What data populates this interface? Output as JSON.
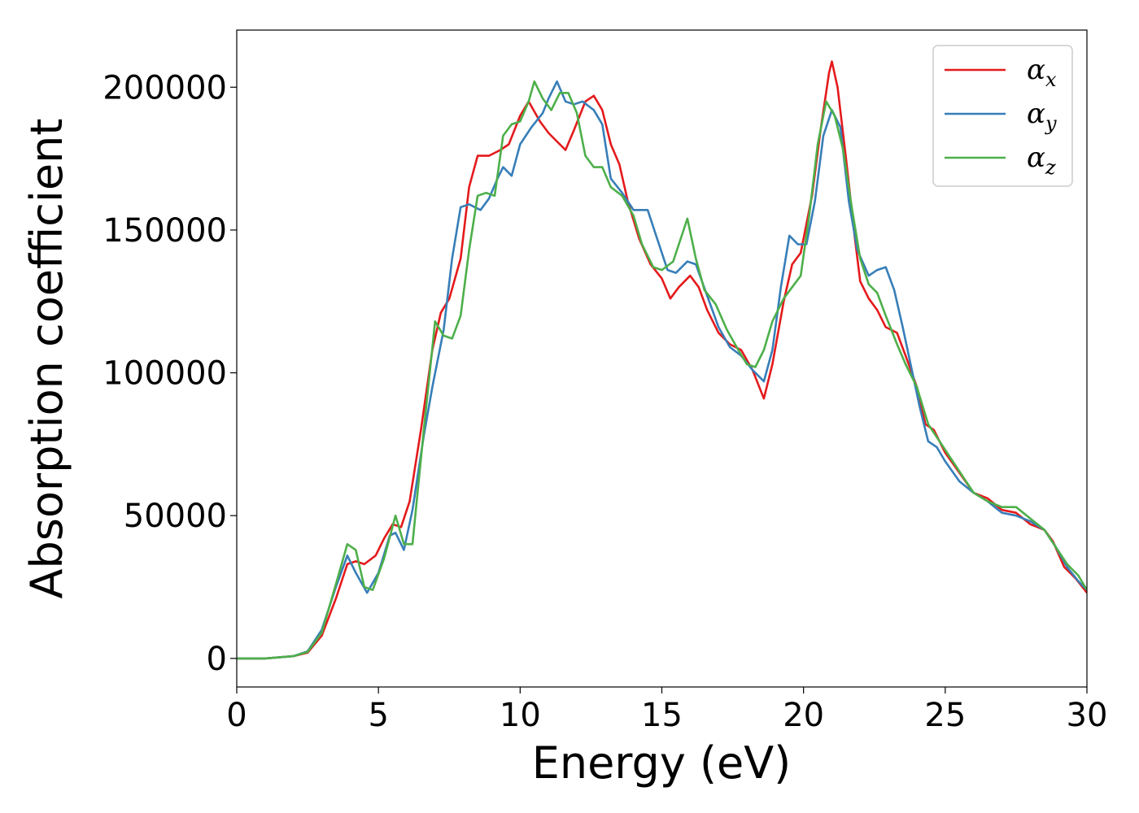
{
  "chart_data": {
    "type": "line",
    "title": "",
    "xlabel": "Energy (eV)",
    "ylabel": "Absorption coefficient",
    "xlim": [
      0,
      30
    ],
    "ylim": [
      -10000,
      220000
    ],
    "xticks": [
      0,
      5,
      10,
      15,
      20,
      25,
      30
    ],
    "yticks": [
      0,
      50000,
      100000,
      150000,
      200000
    ],
    "grid": false,
    "legend_position": "top-right",
    "series": [
      {
        "name": "α_x",
        "label_main": "α",
        "label_sub": "x",
        "color": "#e41a1c",
        "points": [
          [
            0,
            0
          ],
          [
            1,
            0
          ],
          [
            2,
            800
          ],
          [
            2.5,
            2000
          ],
          [
            3,
            8000
          ],
          [
            3.5,
            21000
          ],
          [
            3.9,
            33000
          ],
          [
            4.2,
            34000
          ],
          [
            4.5,
            33000
          ],
          [
            4.9,
            36000
          ],
          [
            5.2,
            42000
          ],
          [
            5.5,
            47000
          ],
          [
            5.8,
            46000
          ],
          [
            6.1,
            55000
          ],
          [
            6.5,
            80000
          ],
          [
            6.9,
            108000
          ],
          [
            7.2,
            121000
          ],
          [
            7.5,
            126000
          ],
          [
            7.9,
            140000
          ],
          [
            8.2,
            165000
          ],
          [
            8.5,
            176000
          ],
          [
            8.9,
            176000
          ],
          [
            9.3,
            178000
          ],
          [
            9.6,
            180000
          ],
          [
            10.0,
            190000
          ],
          [
            10.3,
            195000
          ],
          [
            10.7,
            188000
          ],
          [
            11.0,
            184000
          ],
          [
            11.3,
            181000
          ],
          [
            11.6,
            178000
          ],
          [
            11.9,
            185000
          ],
          [
            12.3,
            195000
          ],
          [
            12.6,
            197000
          ],
          [
            12.9,
            192000
          ],
          [
            13.2,
            180000
          ],
          [
            13.5,
            173000
          ],
          [
            13.8,
            160000
          ],
          [
            14.2,
            147000
          ],
          [
            14.6,
            138000
          ],
          [
            15.0,
            133000
          ],
          [
            15.3,
            126000
          ],
          [
            15.6,
            130000
          ],
          [
            16.0,
            134000
          ],
          [
            16.3,
            130000
          ],
          [
            16.6,
            122000
          ],
          [
            17.0,
            114000
          ],
          [
            17.4,
            110000
          ],
          [
            17.8,
            108000
          ],
          [
            18.2,
            101000
          ],
          [
            18.6,
            91000
          ],
          [
            18.9,
            103000
          ],
          [
            19.3,
            125000
          ],
          [
            19.6,
            138000
          ],
          [
            19.9,
            142000
          ],
          [
            20.3,
            162000
          ],
          [
            20.6,
            185000
          ],
          [
            20.9,
            205000
          ],
          [
            21.0,
            209000
          ],
          [
            21.2,
            200000
          ],
          [
            21.5,
            175000
          ],
          [
            21.8,
            148000
          ],
          [
            22.0,
            132000
          ],
          [
            22.3,
            126000
          ],
          [
            22.6,
            122000
          ],
          [
            22.9,
            116000
          ],
          [
            23.3,
            114000
          ],
          [
            23.6,
            106000
          ],
          [
            24.0,
            95000
          ],
          [
            24.3,
            82000
          ],
          [
            24.6,
            80000
          ],
          [
            25.0,
            72000
          ],
          [
            25.5,
            65000
          ],
          [
            26.0,
            58000
          ],
          [
            26.5,
            56000
          ],
          [
            27.0,
            52000
          ],
          [
            27.5,
            51000
          ],
          [
            28.0,
            47000
          ],
          [
            28.5,
            45000
          ],
          [
            28.8,
            41000
          ],
          [
            29.2,
            32000
          ],
          [
            29.6,
            28000
          ],
          [
            30.0,
            23000
          ]
        ]
      },
      {
        "name": "α_y",
        "label_main": "α",
        "label_sub": "y",
        "color": "#377eb8",
        "points": [
          [
            0,
            0
          ],
          [
            1,
            0
          ],
          [
            2,
            800
          ],
          [
            2.5,
            2500
          ],
          [
            3,
            10000
          ],
          [
            3.5,
            25000
          ],
          [
            3.9,
            36000
          ],
          [
            4.2,
            30000
          ],
          [
            4.6,
            23000
          ],
          [
            5.0,
            30000
          ],
          [
            5.4,
            43000
          ],
          [
            5.6,
            44000
          ],
          [
            5.9,
            38000
          ],
          [
            6.2,
            52000
          ],
          [
            6.6,
            78000
          ],
          [
            6.9,
            95000
          ],
          [
            7.3,
            115000
          ],
          [
            7.6,
            140000
          ],
          [
            7.9,
            158000
          ],
          [
            8.2,
            159000
          ],
          [
            8.6,
            157000
          ],
          [
            8.9,
            161000
          ],
          [
            9.2,
            168000
          ],
          [
            9.4,
            172000
          ],
          [
            9.7,
            169000
          ],
          [
            10.0,
            180000
          ],
          [
            10.4,
            186000
          ],
          [
            10.8,
            191000
          ],
          [
            11.0,
            196000
          ],
          [
            11.3,
            202000
          ],
          [
            11.6,
            195000
          ],
          [
            11.9,
            194000
          ],
          [
            12.2,
            195000
          ],
          [
            12.6,
            192000
          ],
          [
            12.9,
            187000
          ],
          [
            13.2,
            168000
          ],
          [
            13.6,
            163000
          ],
          [
            14.0,
            157000
          ],
          [
            14.5,
            157000
          ],
          [
            14.8,
            148000
          ],
          [
            15.2,
            136000
          ],
          [
            15.5,
            135000
          ],
          [
            15.9,
            139000
          ],
          [
            16.2,
            138000
          ],
          [
            16.6,
            127000
          ],
          [
            17.0,
            116000
          ],
          [
            17.4,
            109000
          ],
          [
            17.8,
            106000
          ],
          [
            18.2,
            101000
          ],
          [
            18.6,
            97000
          ],
          [
            18.9,
            108000
          ],
          [
            19.2,
            130000
          ],
          [
            19.5,
            148000
          ],
          [
            19.8,
            145000
          ],
          [
            20.1,
            145000
          ],
          [
            20.4,
            160000
          ],
          [
            20.7,
            183000
          ],
          [
            21.0,
            192000
          ],
          [
            21.3,
            186000
          ],
          [
            21.6,
            160000
          ],
          [
            21.9,
            143000
          ],
          [
            22.3,
            134000
          ],
          [
            22.6,
            136000
          ],
          [
            22.9,
            137000
          ],
          [
            23.2,
            129000
          ],
          [
            23.5,
            116000
          ],
          [
            23.8,
            102000
          ],
          [
            24.1,
            88000
          ],
          [
            24.4,
            76000
          ],
          [
            24.7,
            74000
          ],
          [
            25.0,
            69000
          ],
          [
            25.5,
            62000
          ],
          [
            26.0,
            58000
          ],
          [
            26.5,
            55000
          ],
          [
            27.0,
            51000
          ],
          [
            27.5,
            50000
          ],
          [
            28.0,
            48000
          ],
          [
            28.5,
            45000
          ],
          [
            28.9,
            39000
          ],
          [
            29.3,
            32000
          ],
          [
            29.7,
            27000
          ],
          [
            30.0,
            24000
          ]
        ]
      },
      {
        "name": "α_z",
        "label_main": "α",
        "label_sub": "z",
        "color": "#4daf4a",
        "points": [
          [
            0,
            0
          ],
          [
            1,
            0
          ],
          [
            2,
            800
          ],
          [
            2.5,
            2300
          ],
          [
            3,
            9000
          ],
          [
            3.5,
            26000
          ],
          [
            3.9,
            40000
          ],
          [
            4.2,
            38000
          ],
          [
            4.5,
            25000
          ],
          [
            4.8,
            24000
          ],
          [
            5.2,
            35000
          ],
          [
            5.6,
            50000
          ],
          [
            5.9,
            40000
          ],
          [
            6.2,
            40000
          ],
          [
            6.6,
            80000
          ],
          [
            7.0,
            118000
          ],
          [
            7.3,
            113000
          ],
          [
            7.6,
            112000
          ],
          [
            7.9,
            120000
          ],
          [
            8.2,
            143000
          ],
          [
            8.5,
            162000
          ],
          [
            8.8,
            163000
          ],
          [
            9.1,
            162000
          ],
          [
            9.4,
            183000
          ],
          [
            9.7,
            187000
          ],
          [
            10.0,
            188000
          ],
          [
            10.3,
            195000
          ],
          [
            10.5,
            202000
          ],
          [
            10.8,
            196000
          ],
          [
            11.1,
            192000
          ],
          [
            11.4,
            198000
          ],
          [
            11.7,
            198000
          ],
          [
            12.0,
            191000
          ],
          [
            12.3,
            176000
          ],
          [
            12.6,
            172000
          ],
          [
            12.9,
            172000
          ],
          [
            13.2,
            165000
          ],
          [
            13.6,
            162000
          ],
          [
            14.0,
            155000
          ],
          [
            14.3,
            145000
          ],
          [
            14.7,
            137000
          ],
          [
            15.0,
            136000
          ],
          [
            15.4,
            139000
          ],
          [
            15.9,
            154000
          ],
          [
            16.2,
            140000
          ],
          [
            16.5,
            129000
          ],
          [
            16.9,
            124000
          ],
          [
            17.3,
            115000
          ],
          [
            17.7,
            108000
          ],
          [
            18.0,
            103000
          ],
          [
            18.3,
            102000
          ],
          [
            18.6,
            108000
          ],
          [
            18.9,
            118000
          ],
          [
            19.3,
            126000
          ],
          [
            19.6,
            130000
          ],
          [
            19.9,
            134000
          ],
          [
            20.2,
            155000
          ],
          [
            20.5,
            180000
          ],
          [
            20.8,
            195000
          ],
          [
            21.1,
            190000
          ],
          [
            21.4,
            178000
          ],
          [
            21.7,
            158000
          ],
          [
            22.0,
            140000
          ],
          [
            22.3,
            131000
          ],
          [
            22.6,
            128000
          ],
          [
            22.9,
            120000
          ],
          [
            23.3,
            110000
          ],
          [
            23.6,
            103000
          ],
          [
            24.0,
            95000
          ],
          [
            24.4,
            82000
          ],
          [
            24.8,
            76000
          ],
          [
            25.2,
            70000
          ],
          [
            25.6,
            64000
          ],
          [
            26.0,
            58000
          ],
          [
            26.5,
            55000
          ],
          [
            27.0,
            53000
          ],
          [
            27.5,
            53000
          ],
          [
            28.0,
            49000
          ],
          [
            28.5,
            45000
          ],
          [
            28.9,
            39000
          ],
          [
            29.3,
            33000
          ],
          [
            29.7,
            29000
          ],
          [
            30.0,
            24000
          ]
        ]
      }
    ]
  }
}
